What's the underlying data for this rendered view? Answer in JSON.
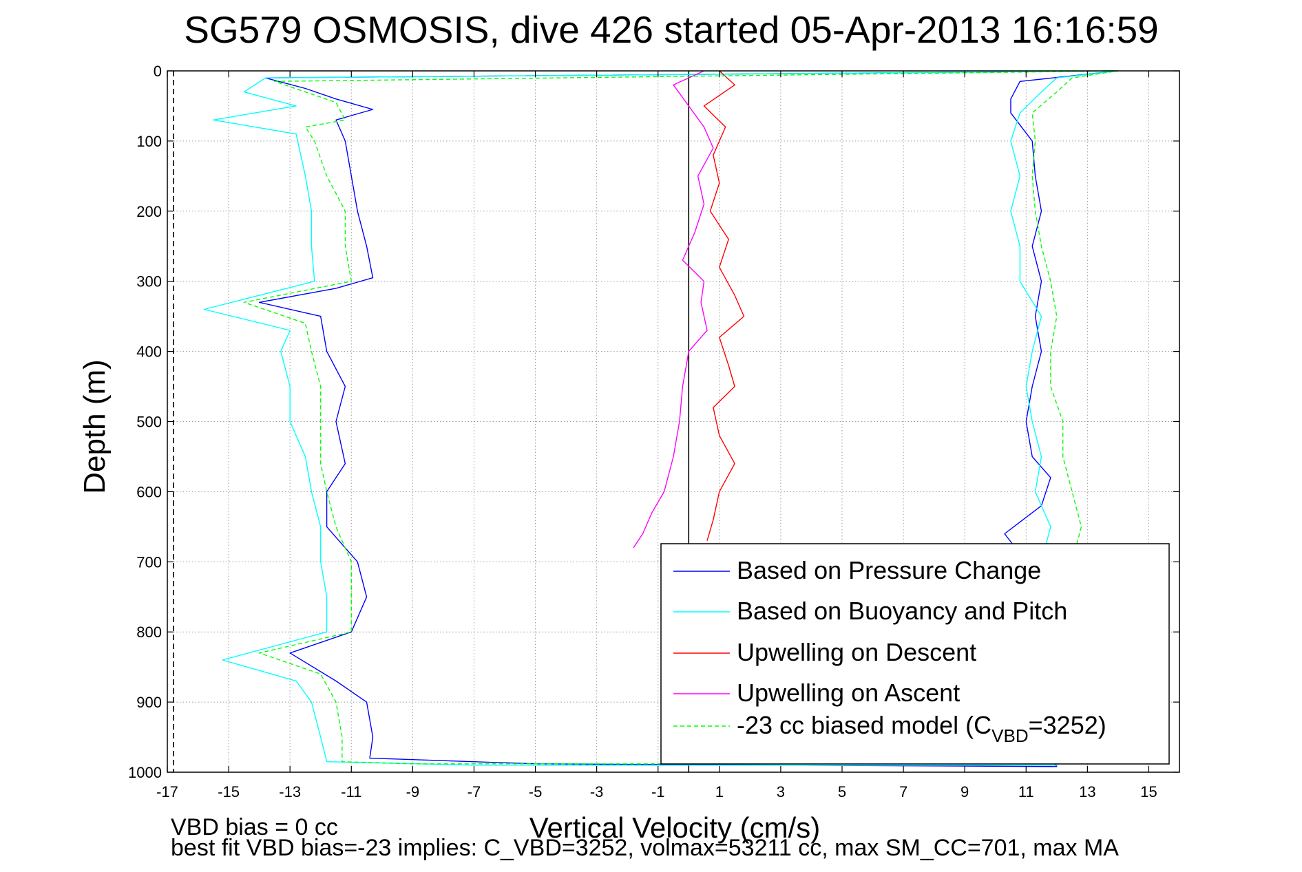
{
  "chart_data": {
    "type": "line",
    "title": "SG579 OSMOSIS, dive 426 started 05-Apr-2013 16:16:59",
    "xlabel": "Vertical Velocity (cm/s)",
    "ylabel": "Depth (m)",
    "xlim": [
      -17,
      16
    ],
    "ylim": [
      1000,
      0
    ],
    "y_reversed": true,
    "grid": true,
    "xticks": [
      -17,
      -15,
      -13,
      -11,
      -9,
      -7,
      -5,
      -3,
      -1,
      1,
      3,
      5,
      7,
      9,
      11,
      13,
      15
    ],
    "yticks": [
      0,
      100,
      200,
      300,
      400,
      500,
      600,
      700,
      800,
      900,
      1000
    ],
    "x_tick_labels": [
      "-17",
      "-15",
      "-13",
      "-11",
      "-9",
      "-7",
      "-5",
      "-3",
      "-1",
      "1",
      "3",
      "5",
      "7",
      "9",
      "11",
      "13",
      "15"
    ],
    "y_tick_labels": [
      "0",
      "100",
      "200",
      "300",
      "400",
      "500",
      "600",
      "700",
      "800",
      "900",
      "1000"
    ],
    "reference_lines": [
      {
        "x": 0,
        "style": "solid",
        "color": "#000000"
      },
      {
        "x": -16.8,
        "style": "dashed",
        "color": "#000000"
      }
    ],
    "legend_position": "lower-right",
    "series": [
      {
        "name": "Based on Pressure Change",
        "color": "#0000ff",
        "style": "solid",
        "points": [
          [
            14,
            0
          ],
          [
            -13.8,
            10
          ],
          [
            -12.5,
            25
          ],
          [
            -11.5,
            40
          ],
          [
            -10.3,
            55
          ],
          [
            -11.5,
            70
          ],
          [
            -11.2,
            100
          ],
          [
            -11,
            150
          ],
          [
            -10.8,
            200
          ],
          [
            -10.5,
            250
          ],
          [
            -10.3,
            295
          ],
          [
            -11.5,
            310
          ],
          [
            -14,
            330
          ],
          [
            -12,
            350
          ],
          [
            -11.8,
            400
          ],
          [
            -11.2,
            450
          ],
          [
            -11.5,
            500
          ],
          [
            -11.2,
            560
          ],
          [
            -11.8,
            600
          ],
          [
            -11.8,
            650
          ],
          [
            -10.8,
            700
          ],
          [
            -10.5,
            750
          ],
          [
            -11,
            800
          ],
          [
            -13,
            830
          ],
          [
            -11.5,
            870
          ],
          [
            -10.5,
            900
          ],
          [
            -10.3,
            950
          ],
          [
            -10.4,
            980
          ],
          [
            -5,
            988
          ],
          [
            12,
            992
          ],
          [
            11.8,
            980
          ],
          [
            11,
            950
          ],
          [
            10.8,
            900
          ],
          [
            10.8,
            850
          ],
          [
            10.8,
            800
          ],
          [
            11,
            750
          ],
          [
            11,
            700
          ],
          [
            10.3,
            660
          ],
          [
            11.5,
            620
          ],
          [
            11.8,
            580
          ],
          [
            11.2,
            550
          ],
          [
            11,
            500
          ],
          [
            11.2,
            450
          ],
          [
            11.5,
            400
          ],
          [
            11.3,
            350
          ],
          [
            11.5,
            300
          ],
          [
            11.2,
            250
          ],
          [
            11.5,
            200
          ],
          [
            11.3,
            150
          ],
          [
            11.2,
            100
          ],
          [
            10.5,
            60
          ],
          [
            10.5,
            40
          ],
          [
            10.8,
            15
          ],
          [
            14,
            0
          ]
        ]
      },
      {
        "name": "Based on Buoyancy and Pitch",
        "color": "#00ffff",
        "style": "solid",
        "points": [
          [
            14,
            0
          ],
          [
            -13.8,
            10
          ],
          [
            -14.5,
            30
          ],
          [
            -12.8,
            50
          ],
          [
            -15.5,
            70
          ],
          [
            -12.8,
            90
          ],
          [
            -12.5,
            150
          ],
          [
            -12.3,
            200
          ],
          [
            -12.3,
            250
          ],
          [
            -12.2,
            300
          ],
          [
            -15.8,
            340
          ],
          [
            -13,
            370
          ],
          [
            -13.3,
            400
          ],
          [
            -13,
            450
          ],
          [
            -13,
            500
          ],
          [
            -12.5,
            550
          ],
          [
            -12.3,
            600
          ],
          [
            -12,
            650
          ],
          [
            -12,
            700
          ],
          [
            -11.8,
            750
          ],
          [
            -11.8,
            800
          ],
          [
            -15.2,
            840
          ],
          [
            -12.8,
            870
          ],
          [
            -12.3,
            900
          ],
          [
            -12,
            950
          ],
          [
            -11.8,
            985
          ],
          [
            -7,
            990
          ],
          [
            12,
            990
          ],
          [
            12.5,
            960
          ],
          [
            12.3,
            900
          ],
          [
            12.3,
            850
          ],
          [
            12.2,
            800
          ],
          [
            12,
            750
          ],
          [
            11.5,
            700
          ],
          [
            11.8,
            650
          ],
          [
            11.3,
            600
          ],
          [
            11.5,
            550
          ],
          [
            11.2,
            500
          ],
          [
            11,
            450
          ],
          [
            11.2,
            400
          ],
          [
            11.5,
            350
          ],
          [
            10.8,
            300
          ],
          [
            10.8,
            250
          ],
          [
            10.5,
            200
          ],
          [
            10.8,
            150
          ],
          [
            10.5,
            100
          ],
          [
            10.8,
            60
          ],
          [
            11.5,
            30
          ],
          [
            12,
            10
          ],
          [
            14,
            0
          ]
        ]
      },
      {
        "name": "Upwelling on Descent",
        "color": "#ff0000",
        "style": "solid",
        "points": [
          [
            1,
            0
          ],
          [
            1.5,
            20
          ],
          [
            0.5,
            50
          ],
          [
            1.2,
            80
          ],
          [
            0.8,
            120
          ],
          [
            1,
            160
          ],
          [
            0.7,
            200
          ],
          [
            1.3,
            240
          ],
          [
            1,
            280
          ],
          [
            1.5,
            320
          ],
          [
            1.8,
            350
          ],
          [
            1,
            380
          ],
          [
            1.3,
            420
          ],
          [
            1.5,
            450
          ],
          [
            0.8,
            480
          ],
          [
            1,
            520
          ],
          [
            1.5,
            560
          ],
          [
            1,
            600
          ],
          [
            0.8,
            640
          ],
          [
            0.6,
            670
          ]
        ]
      },
      {
        "name": "Upwelling on Ascent",
        "color": "#ff00ff",
        "style": "solid",
        "points": [
          [
            0.5,
            0
          ],
          [
            -0.5,
            20
          ],
          [
            0,
            50
          ],
          [
            0.5,
            80
          ],
          [
            0.8,
            110
          ],
          [
            0.3,
            150
          ],
          [
            0.5,
            190
          ],
          [
            0.2,
            230
          ],
          [
            -0.2,
            270
          ],
          [
            0.5,
            300
          ],
          [
            0.4,
            330
          ],
          [
            0.6,
            370
          ],
          [
            0,
            400
          ],
          [
            -0.2,
            450
          ],
          [
            -0.3,
            500
          ],
          [
            -0.5,
            550
          ],
          [
            -0.8,
            600
          ],
          [
            -1.2,
            630
          ],
          [
            -1.5,
            660
          ],
          [
            -1.8,
            680
          ]
        ]
      },
      {
        "name": "-23 cc biased model (C_VBD=3252)",
        "legend_main": "-23 cc biased model (C",
        "legend_sub": "VBD",
        "legend_tail": "=3252)",
        "color": "#00ff00",
        "style": "dashed",
        "points": [
          [
            14,
            0
          ],
          [
            -13.5,
            15
          ],
          [
            -11.5,
            45
          ],
          [
            -11.2,
            70
          ],
          [
            -12.5,
            80
          ],
          [
            -12.2,
            100
          ],
          [
            -11.8,
            150
          ],
          [
            -11.2,
            200
          ],
          [
            -11.2,
            250
          ],
          [
            -11,
            300
          ],
          [
            -14.5,
            330
          ],
          [
            -12.5,
            360
          ],
          [
            -12.3,
            400
          ],
          [
            -12,
            450
          ],
          [
            -12,
            500
          ],
          [
            -12,
            560
          ],
          [
            -11.8,
            600
          ],
          [
            -11.5,
            650
          ],
          [
            -11,
            700
          ],
          [
            -11,
            750
          ],
          [
            -11,
            800
          ],
          [
            -14,
            830
          ],
          [
            -12,
            860
          ],
          [
            -11.5,
            900
          ],
          [
            -11.3,
            950
          ],
          [
            -11.3,
            985
          ],
          [
            -9,
            988
          ],
          [
            12.5,
            988
          ],
          [
            12.8,
            950
          ],
          [
            12.5,
            900
          ],
          [
            12.5,
            850
          ],
          [
            12.8,
            800
          ],
          [
            12.5,
            750
          ],
          [
            12.5,
            700
          ],
          [
            12.8,
            650
          ],
          [
            12.5,
            600
          ],
          [
            12.2,
            550
          ],
          [
            12.2,
            500
          ],
          [
            11.8,
            450
          ],
          [
            11.8,
            400
          ],
          [
            12,
            350
          ],
          [
            11.8,
            300
          ],
          [
            11.5,
            250
          ],
          [
            11.3,
            200
          ],
          [
            11.2,
            150
          ],
          [
            11.3,
            100
          ],
          [
            11.2,
            60
          ],
          [
            12,
            30
          ],
          [
            12.5,
            10
          ],
          [
            14,
            0
          ]
        ]
      }
    ],
    "footer": {
      "line1": "VBD bias = 0 cc",
      "line2": "best fit VBD bias=-23 implies: C_VBD=3252, volmax=53211 cc, max SM_CC=701, max MA"
    }
  }
}
